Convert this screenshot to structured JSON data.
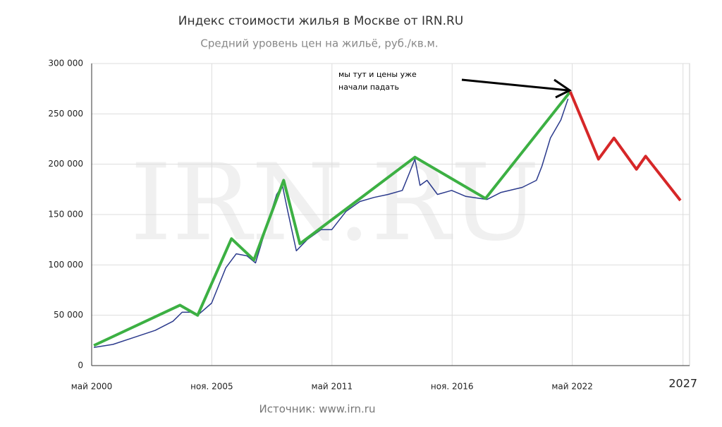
{
  "chart_data": {
    "type": "line",
    "title": "Индекс стоимости жилья в Москве от IRN.RU",
    "subtitle": "Средний уровень цен на жильё, руб./кв.м.",
    "source": "Источник: www.irn.ru",
    "watermark": "IRN.RU",
    "annotation": [
      "мы тут и цены уже",
      "начали падать"
    ],
    "xlim": [
      2000.33,
      2027.7
    ],
    "xticks": [
      {
        "value": 2000.33,
        "label": "май 2000"
      },
      {
        "value": 2005.83,
        "label": "ноя. 2005"
      },
      {
        "value": 2011.33,
        "label": "май 2011"
      },
      {
        "value": 2016.83,
        "label": "ноя. 2016"
      },
      {
        "value": 2022.33,
        "label": "май 2022"
      },
      {
        "value": 2027.4,
        "label": "2027"
      }
    ],
    "ylim": [
      0,
      300000
    ],
    "yticks": [
      0,
      {
        "value": 50000,
        "label": "50 000"
      },
      {
        "value": 100000,
        "label": "100 000"
      },
      {
        "value": 150000,
        "label": "150 000"
      },
      {
        "value": 200000,
        "label": "200 000"
      },
      {
        "value": 250000,
        "label": "250 000"
      },
      {
        "value": 300000,
        "label": "300 000"
      }
    ],
    "grid": true,
    "series": [
      {
        "color": "#2b3a8c",
        "x": [
          2000.43,
          2001.3,
          2002.27,
          2003.24,
          2004.05,
          2004.47,
          2004.85,
          2005.18,
          2005.82,
          2006.47,
          2006.95,
          2007.44,
          2007.83,
          2008.25,
          2008.8,
          2009.06,
          2009.31,
          2009.7,
          2010.19,
          2010.83,
          2011.32,
          2011.97,
          2012.61,
          2013.26,
          2013.9,
          2014.55,
          2014.87,
          2015.13,
          2015.36,
          2015.68,
          2016.16,
          2016.81,
          2017.46,
          2018.43,
          2019.07,
          2020.04,
          2020.69,
          2020.94,
          2021.33,
          2021.81,
          2022.14
        ],
        "values": [
          18000,
          21000,
          28000,
          35000,
          44000,
          53000,
          53000,
          50000,
          62000,
          97000,
          111000,
          109000,
          102000,
          132000,
          170000,
          179000,
          153000,
          114000,
          125000,
          135000,
          135000,
          153000,
          163000,
          167000,
          170000,
          174000,
          191000,
          205000,
          179000,
          184000,
          170000,
          174000,
          168000,
          165000,
          172000,
          177000,
          184000,
          198000,
          226000,
          244000,
          265000
        ]
      },
      {
        "color": "#3cb043",
        "x": [
          2000.43,
          2004.37,
          2005.18,
          2006.73,
          2007.76,
          2009.12,
          2009.86,
          2015.13,
          2018.36,
          2022.24
        ],
        "values": [
          20000,
          60000,
          50000,
          126000,
          105000,
          184000,
          121000,
          207000,
          166000,
          272000
        ]
      },
      {
        "color": "#d62728",
        "x": [
          2022.24,
          2023.53,
          2024.24,
          2025.27,
          2025.69,
          2027.28
        ],
        "values": [
          272000,
          205000,
          226000,
          195000,
          208000,
          164000
        ]
      }
    ]
  }
}
